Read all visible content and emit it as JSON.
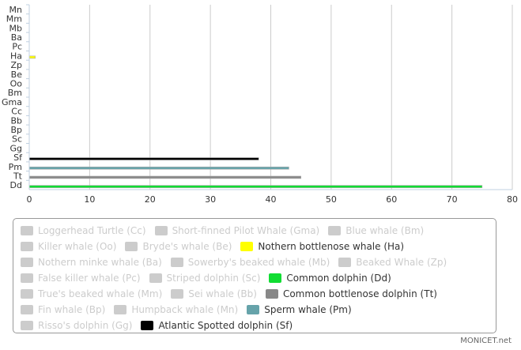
{
  "chart_data": {
    "type": "bar",
    "orientation": "horizontal",
    "categories": [
      "Mn",
      "Mm",
      "Mb",
      "Ba",
      "Pc",
      "Ha",
      "Zp",
      "Be",
      "Oo",
      "Bm",
      "Gma",
      "Cc",
      "Bb",
      "Bp",
      "Sc",
      "Gg",
      "Sf",
      "Pm",
      "Tt",
      "Dd"
    ],
    "xlim": [
      0,
      80
    ],
    "xticks": [
      0,
      10,
      20,
      30,
      40,
      50,
      60,
      70,
      80
    ],
    "grid": true,
    "legend_position": "bottom",
    "series": [
      {
        "name": "Loggerhead Turtle (Cc)",
        "code": "Cc",
        "color": "#cccccc",
        "visible": false
      },
      {
        "name": "Short-finned Pilot Whale (Gma)",
        "code": "Gma",
        "color": "#cccccc",
        "visible": false
      },
      {
        "name": "Blue whale (Bm)",
        "code": "Bm",
        "color": "#cccccc",
        "visible": false
      },
      {
        "name": "Killer whale (Oo)",
        "code": "Oo",
        "color": "#cccccc",
        "visible": false
      },
      {
        "name": "Bryde's whale (Be)",
        "code": "Be",
        "color": "#cccccc",
        "visible": false
      },
      {
        "name": "Nothern bottlenose whale (Ha)",
        "code": "Ha",
        "color": "#ffff00",
        "visible": true,
        "value": 1
      },
      {
        "name": "Nothern minke whale (Ba)",
        "code": "Ba",
        "color": "#cccccc",
        "visible": false
      },
      {
        "name": "Sowerby's beaked whale (Mb)",
        "code": "Mb",
        "color": "#cccccc",
        "visible": false
      },
      {
        "name": "Beaked Whale (Zp)",
        "code": "Zp",
        "color": "#cccccc",
        "visible": false
      },
      {
        "name": "False killer whale (Pc)",
        "code": "Pc",
        "color": "#cccccc",
        "visible": false
      },
      {
        "name": "Striped dolphin (Sc)",
        "code": "Sc",
        "color": "#cccccc",
        "visible": false
      },
      {
        "name": "Common dolphin (Dd)",
        "code": "Dd",
        "color": "#11dd33",
        "visible": true,
        "value": 75
      },
      {
        "name": "True's beaked whale (Mm)",
        "code": "Mm",
        "color": "#cccccc",
        "visible": false
      },
      {
        "name": "Sei whale (Bb)",
        "code": "Bb",
        "color": "#cccccc",
        "visible": false
      },
      {
        "name": "Common bottlenose dolphin (Tt)",
        "code": "Tt",
        "color": "#888888",
        "visible": true,
        "value": 45
      },
      {
        "name": "Fin whale (Bp)",
        "code": "Bp",
        "color": "#cccccc",
        "visible": false
      },
      {
        "name": "Humpback whale (Mn)",
        "code": "Mn",
        "color": "#cccccc",
        "visible": false
      },
      {
        "name": "Sperm whale (Pm)",
        "code": "Pm",
        "color": "#66a3aa",
        "visible": true,
        "value": 43
      },
      {
        "name": "Risso's dolphin (Gg)",
        "code": "Gg",
        "color": "#cccccc",
        "visible": false
      },
      {
        "name": "Atlantic Spotted dolphin (Sf)",
        "code": "Sf",
        "color": "#000000",
        "visible": true,
        "value": 38
      }
    ],
    "legend_rows": [
      [
        0,
        1,
        2
      ],
      [
        3,
        4,
        5
      ],
      [
        6,
        7,
        8
      ],
      [
        9,
        10,
        11
      ],
      [
        12,
        13,
        14
      ],
      [
        15,
        16,
        17
      ],
      [
        18,
        19
      ]
    ]
  },
  "credit": "MONICET.net"
}
